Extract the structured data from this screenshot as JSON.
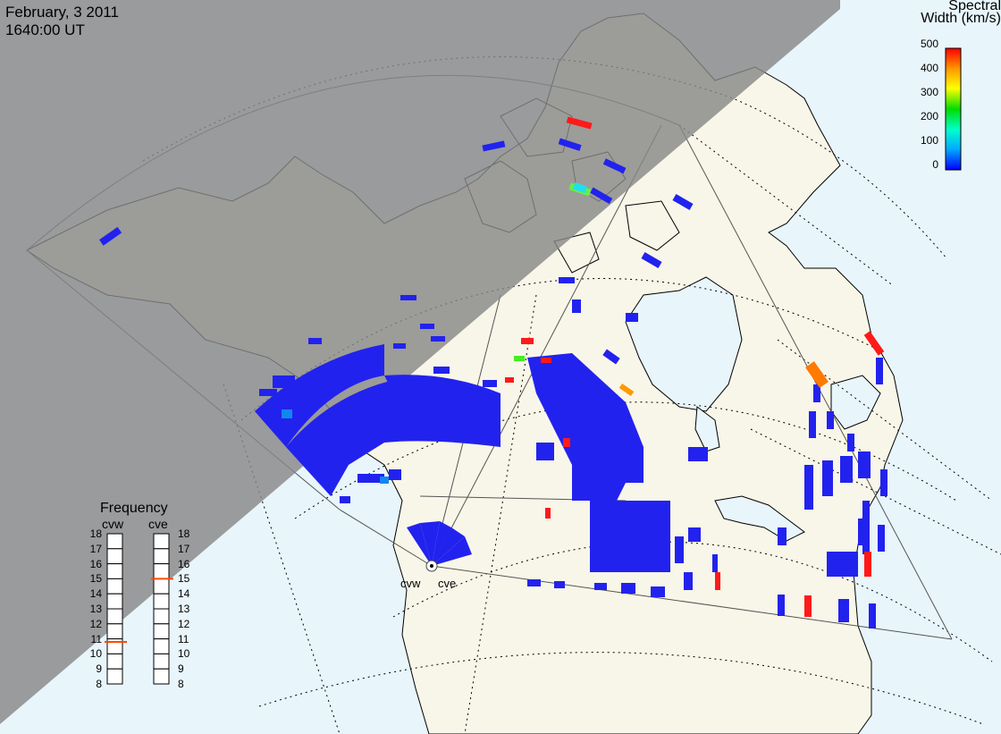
{
  "header": {
    "date": "February, 3 2011",
    "time": "1640:00 UT"
  },
  "colorbar": {
    "title_line1": "Spectral",
    "title_line2": "Width (km/s)",
    "ticks": [
      "500",
      "400",
      "300",
      "200",
      "100",
      "0"
    ],
    "min": 0,
    "max": 500,
    "gradient": [
      "#0000ff",
      "#00aaff",
      "#00ffcc",
      "#00dd00",
      "#ffff00",
      "#ff9900",
      "#ff0000"
    ]
  },
  "radars": {
    "west_label": "cvw",
    "east_label": "cve"
  },
  "frequency_panel": {
    "title": "Frequency",
    "west_column": "cvw",
    "east_column": "cve",
    "scale": [
      "18",
      "17",
      "16",
      "15",
      "14",
      "13",
      "12",
      "11",
      "10",
      "9",
      "8"
    ],
    "west_value_mhz": 10.8,
    "east_value_mhz": 15.0,
    "marker_color": "#ff4a00"
  },
  "colors": {
    "night": "#999999",
    "land": "#f8f6e8",
    "ocean": "#e8f5fb",
    "scatter_low": "#2222ee"
  }
}
